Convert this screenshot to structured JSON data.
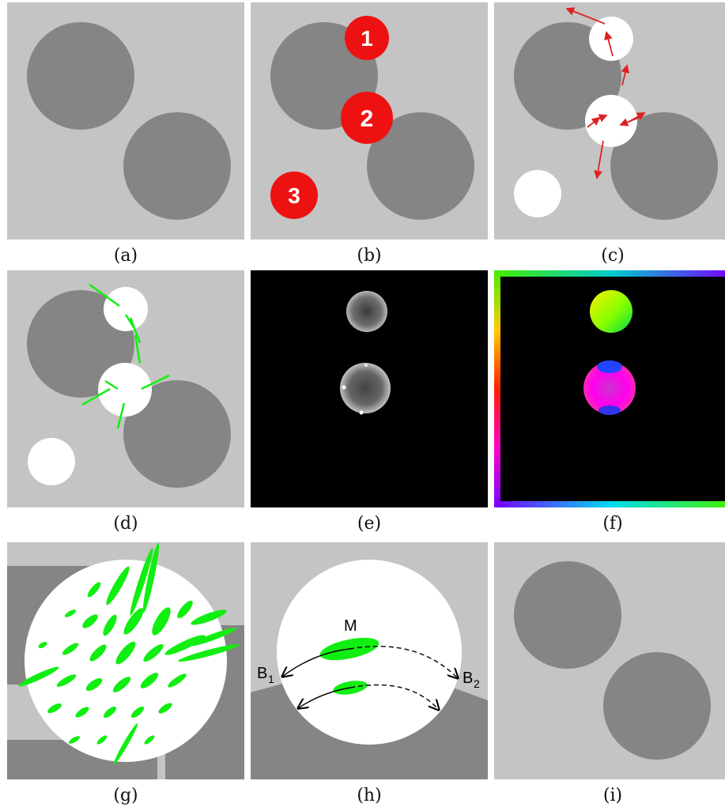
{
  "panels": {
    "a": {
      "caption": "(a)"
    },
    "b": {
      "caption": "(b)",
      "markers": [
        "1",
        "2",
        "3"
      ]
    },
    "c": {
      "caption": "(c)"
    },
    "d": {
      "caption": "(d)"
    },
    "e": {
      "caption": "(e)"
    },
    "f": {
      "caption": "(f)"
    },
    "g": {
      "caption": "(g)"
    },
    "h": {
      "caption": "(h)",
      "label_m": "M",
      "label_b1": "B",
      "label_b1_sub": "1",
      "label_b2": "B",
      "label_b2_sub": "2"
    },
    "i": {
      "caption": "(i)"
    }
  },
  "colors": {
    "background": "#c4c4c4",
    "dark_disc": "#858585",
    "white_disc": "#ffffff",
    "marker_red": "#ee1111",
    "arrow_red": "#dd2222",
    "tensor_green": "#11ee11",
    "black": "#000000"
  }
}
